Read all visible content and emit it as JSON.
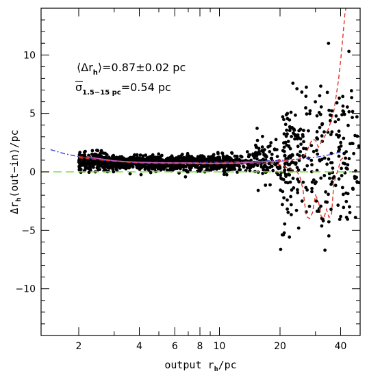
{
  "chart_data": {
    "type": "scatter",
    "title": "",
    "xlabel": {
      "main": "output r",
      "sub": "h",
      "tail": "/pc"
    },
    "ylabel": {
      "pre": "Δr",
      "sub": "h",
      "tail": "(out−in)/pc"
    },
    "x_scale": "log",
    "xlim": [
      1.3,
      50
    ],
    "ylim": [
      -14,
      14
    ],
    "x_ticks_major": [
      2,
      4,
      6,
      8,
      10,
      20,
      40
    ],
    "x_tick_labels": [
      "2",
      "4",
      "6",
      "8",
      "10",
      "20",
      "40"
    ],
    "y_ticks_major": [
      -10,
      -5,
      0,
      5,
      10
    ],
    "y_tick_labels": [
      "−10",
      "−5",
      "0",
      "5",
      "10"
    ],
    "y_tick_minor_step": 1,
    "grid": false,
    "legend": "none",
    "annotations": [
      {
        "pre": "⟨Δr",
        "sub": "h",
        "post": "⟩=0.87±0.02 pc"
      },
      {
        "pre": "σ",
        "sub": "1.5−15 pc",
        "post": "=0.54 pc"
      }
    ],
    "reference_line": {
      "y": 0,
      "style": "dashed",
      "color": "#7fe040"
    },
    "series": [
      {
        "style": "dash-dot",
        "color": "#3a3ad8",
        "points": [
          [
            1.45,
            1.9
          ],
          [
            1.7,
            1.55
          ],
          [
            2.0,
            1.3
          ],
          [
            2.5,
            1.05
          ],
          [
            3,
            0.9
          ],
          [
            4,
            0.78
          ],
          [
            5,
            0.75
          ],
          [
            6,
            0.76
          ],
          [
            8,
            0.8
          ],
          [
            10,
            0.83
          ],
          [
            12,
            0.86
          ],
          [
            15,
            0.9
          ],
          [
            20,
            0.98
          ],
          [
            25,
            1.1
          ],
          [
            30,
            1.25
          ],
          [
            35,
            1.45
          ],
          [
            40,
            1.7
          ]
        ]
      },
      {
        "style": "dashed",
        "color": "#e03020",
        "points": [
          [
            2.0,
            1.3
          ],
          [
            2.3,
            1.2
          ],
          [
            2.6,
            1.1
          ],
          [
            3,
            0.95
          ],
          [
            3.5,
            0.85
          ],
          [
            4,
            0.82
          ],
          [
            5,
            0.8
          ],
          [
            6,
            0.79
          ],
          [
            7,
            0.78
          ],
          [
            8,
            0.76
          ],
          [
            9,
            0.75
          ],
          [
            10,
            0.76
          ],
          [
            12,
            0.8
          ],
          [
            14,
            0.85
          ],
          [
            16,
            0.88
          ],
          [
            18,
            0.9
          ],
          [
            20,
            0.95
          ],
          [
            22,
            1.0
          ],
          [
            24,
            1.05
          ],
          [
            25,
            1.1
          ],
          [
            26,
            1.3
          ],
          [
            27,
            1.6
          ],
          [
            28,
            2.3
          ],
          [
            29,
            2.8
          ],
          [
            30,
            2.7
          ],
          [
            31,
            2.1
          ],
          [
            32,
            2.5
          ],
          [
            33,
            2.9
          ],
          [
            34,
            3.3
          ],
          [
            35,
            3.8
          ],
          [
            36,
            4.5
          ],
          [
            37,
            5.2
          ],
          [
            38,
            6.5
          ],
          [
            39,
            7.8
          ],
          [
            40,
            9.5
          ],
          [
            41,
            11.5
          ],
          [
            42,
            13.5
          ],
          [
            42.5,
            14
          ]
        ]
      },
      {
        "style": "dashed",
        "color": "#e03020",
        "points": [
          [
            2.0,
            1.2
          ],
          [
            3,
            0.9
          ],
          [
            4,
            0.75
          ],
          [
            6,
            0.7
          ],
          [
            8,
            0.68
          ],
          [
            10,
            0.68
          ],
          [
            12,
            0.7
          ],
          [
            15,
            0.72
          ],
          [
            18,
            0.75
          ],
          [
            20,
            0.6
          ],
          [
            22,
            0.3
          ],
          [
            24,
            0.1
          ],
          [
            25,
            -0.3
          ],
          [
            26,
            -1.5
          ],
          [
            27,
            -3.8
          ],
          [
            28,
            -4.0
          ],
          [
            29,
            -3.5
          ],
          [
            30,
            -2.0
          ],
          [
            31,
            -2.5
          ],
          [
            32,
            -3.8
          ],
          [
            33,
            -4.0
          ],
          [
            34,
            -3.2
          ],
          [
            35,
            -3.9
          ],
          [
            36,
            -3.7
          ],
          [
            37,
            -1.0
          ],
          [
            38,
            -0.3
          ],
          [
            39,
            0.3
          ],
          [
            40,
            1.0
          ],
          [
            41,
            1.2
          ]
        ]
      },
      {
        "style": "solid",
        "color": "#c060c0",
        "points": [
          [
            2.2,
            1.3
          ],
          [
            2.5,
            1.15
          ],
          [
            3,
            0.95
          ],
          [
            3.5,
            0.87
          ],
          [
            4,
            0.82
          ],
          [
            5,
            0.78
          ],
          [
            6,
            0.77
          ],
          [
            7,
            0.76
          ],
          [
            8,
            0.74
          ],
          [
            9,
            0.72
          ],
          [
            10,
            0.73
          ],
          [
            12,
            0.75
          ],
          [
            14,
            0.8
          ],
          [
            16,
            0.85
          ],
          [
            18,
            0.88
          ],
          [
            20,
            0.9
          ],
          [
            22,
            0.92
          ]
        ]
      }
    ]
  }
}
